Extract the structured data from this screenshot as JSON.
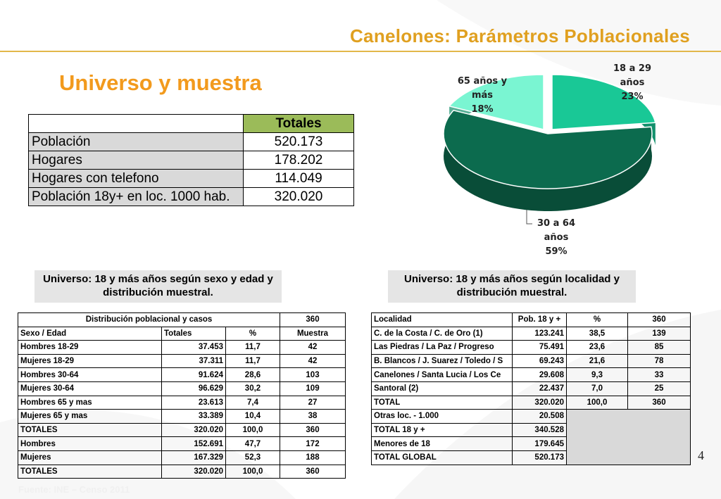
{
  "slide_title": "Canelones: Parámetros Poblacionales",
  "section_title": "Universo y muestra",
  "totals_table": {
    "header": "Totales",
    "rows": [
      {
        "label": "Población",
        "value": "520.173"
      },
      {
        "label": "Hogares",
        "value": "178.202"
      },
      {
        "label": "Hogares con telefono",
        "value": "114.049"
      },
      {
        "label": "Población 18y+ en loc. 1000 hab.",
        "value": "320.020"
      }
    ]
  },
  "captions": {
    "left": "Universo: 18 y más años según sexo y edad y distribución muestral.",
    "right": "Universo: 18 y más años según localidad y distribución muestral."
  },
  "sex_age_table": {
    "title": "Distribución poblacional y casos",
    "title_value": "360",
    "columns": [
      "Sexo / Edad",
      "Totales",
      "%",
      "Muestra"
    ],
    "rows": [
      [
        "Hombres 18-29",
        "37.453",
        "11,7",
        "42"
      ],
      [
        "Mujeres 18-29",
        "37.311",
        "11,7",
        "42"
      ],
      [
        "Hombres 30-64",
        "91.624",
        "28,6",
        "103"
      ],
      [
        "Mujeres 30-64",
        "96.629",
        "30,2",
        "109"
      ],
      [
        "Hombres 65 y mas",
        "23.613",
        "7,4",
        "27"
      ],
      [
        "Mujeres 65 y mas",
        "33.389",
        "10,4",
        "38"
      ],
      [
        "TOTALES",
        "320.020",
        "100,0",
        "360"
      ],
      [
        "Hombres",
        "152.691",
        "47,7",
        "172"
      ],
      [
        "Mujeres",
        "167.329",
        "52,3",
        "188"
      ],
      [
        "TOTALES",
        "320.020",
        "100,0",
        "360"
      ]
    ]
  },
  "locality_table": {
    "columns": [
      "Localidad",
      "Pob. 18 y +",
      "%",
      "360"
    ],
    "rows": [
      [
        "C. de la Costa / C. de Oro (1)",
        "123.241",
        "38,5",
        "139"
      ],
      [
        "Las Piedras / La Paz / Progreso",
        "75.491",
        "23,6",
        "85"
      ],
      [
        "B. Blancos / J. Suarez / Toledo / S",
        "69.243",
        "21,6",
        "78"
      ],
      [
        "Canelones / Santa Lucia / Los Ce",
        "29.608",
        "9,3",
        "33"
      ],
      [
        "Santoral (2)",
        "22.437",
        "7,0",
        "25"
      ],
      [
        "TOTAL",
        "320.020",
        "100,0",
        "360"
      ]
    ],
    "extra_rows": [
      [
        "Otras loc. - 1.000",
        "20.508"
      ],
      [
        "TOTAL 18 y +",
        "340.528"
      ],
      [
        "Menores de 18",
        "179.645"
      ],
      [
        "TOTAL GLOBAL",
        "520.173"
      ]
    ]
  },
  "chart_data": {
    "type": "pie",
    "title": "",
    "slices": [
      {
        "label_lines": [
          "18 a 29",
          "años",
          "23%"
        ],
        "value": 23,
        "color": "#19c896"
      },
      {
        "label_lines": [
          "30 a 64",
          "años",
          "59%"
        ],
        "value": 59,
        "color": "#0c6b4e"
      },
      {
        "label_lines": [
          "65 años y",
          "más",
          "18%"
        ],
        "value": 18,
        "color": "#7af5d2"
      }
    ]
  },
  "page_number": "4",
  "source": "Fuente: INE – Censo 2011",
  "colors": {
    "title": "#e0a020",
    "section_title": "#f29a1d",
    "table_header": "#9bbb59"
  }
}
